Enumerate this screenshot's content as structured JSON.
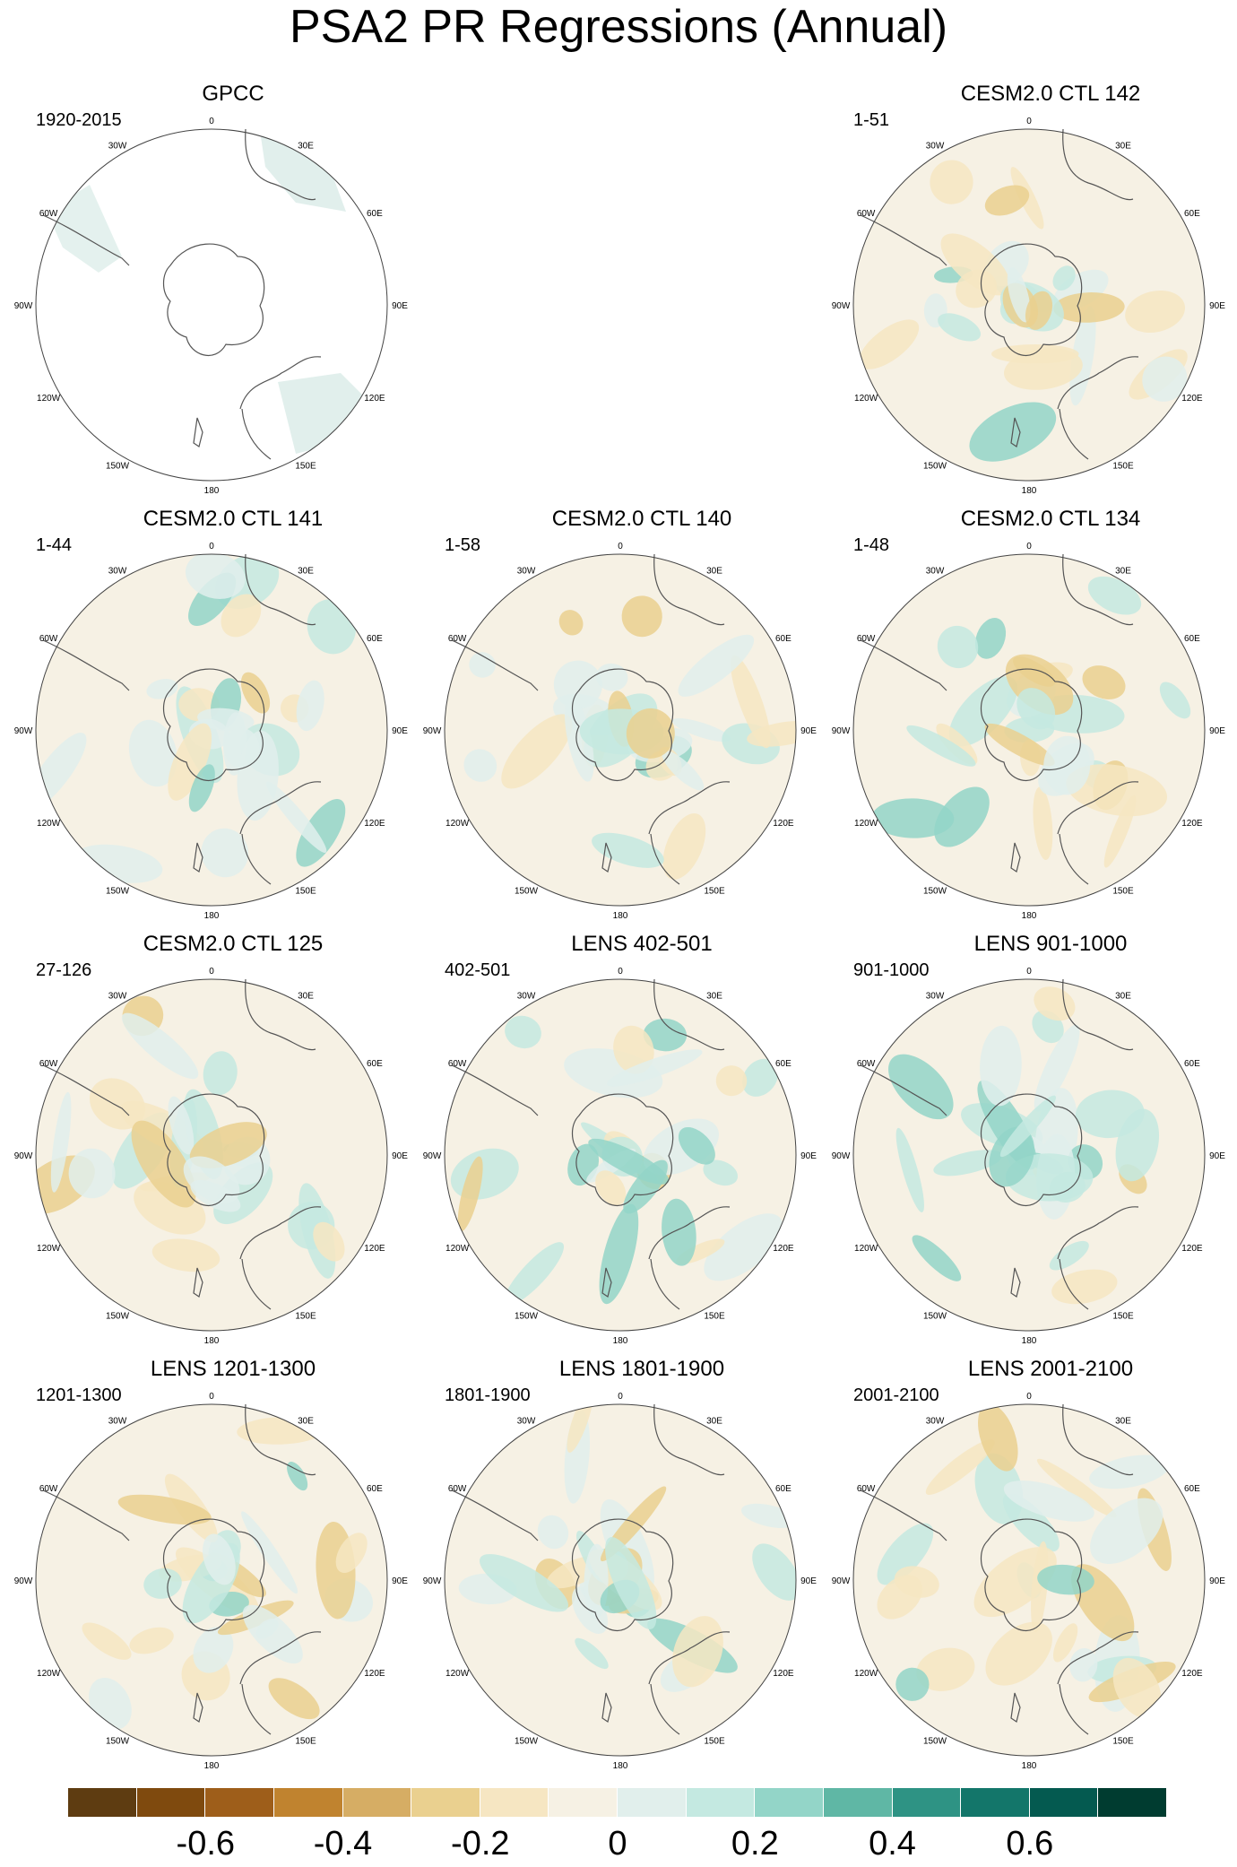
{
  "title": "PSA2 PR Regressions (Annual)",
  "longitude_labels": [
    "0",
    "30E",
    "60E",
    "90E",
    "120E",
    "150E",
    "180",
    "150W",
    "120W",
    "90W",
    "60W",
    "30W"
  ],
  "panels": [
    {
      "title": "GPCC",
      "period": "1920-2015",
      "observational": true
    },
    {
      "title": "CESM2.0 CTL 142",
      "period": "1-51"
    },
    {
      "title": "CESM2.0 CTL 141",
      "period": "1-44"
    },
    {
      "title": "CESM2.0 CTL 140",
      "period": "1-58"
    },
    {
      "title": "CESM2.0 CTL 134",
      "period": "1-48"
    },
    {
      "title": "CESM2.0 CTL 125",
      "period": "27-126"
    },
    {
      "title": "LENS 402-501",
      "period": "402-501"
    },
    {
      "title": "LENS 901-1000",
      "period": "901-1000"
    },
    {
      "title": "LENS 1201-1300",
      "period": "1201-1300"
    },
    {
      "title": "LENS 1801-1900",
      "period": "1801-1900"
    },
    {
      "title": "LENS 2001-2100",
      "period": "2001-2100"
    }
  ],
  "colorbar": {
    "colors": [
      "#5e3c11",
      "#7f4a0e",
      "#9e5e1a",
      "#c0832f",
      "#d6ad64",
      "#ead08f",
      "#f6e6c2",
      "#f6f1e4",
      "#e1efec",
      "#c4e9e1",
      "#93d5c8",
      "#5fb7a5",
      "#2e9384",
      "#13766a",
      "#045a50",
      "#003c30"
    ],
    "tick_labels": [
      "-0.6",
      "-0.4",
      "-0.2",
      "0",
      "0.2",
      "0.4",
      "0.6"
    ],
    "tick_boundary_index": [
      2,
      4,
      6,
      8,
      10,
      12,
      14
    ]
  }
}
